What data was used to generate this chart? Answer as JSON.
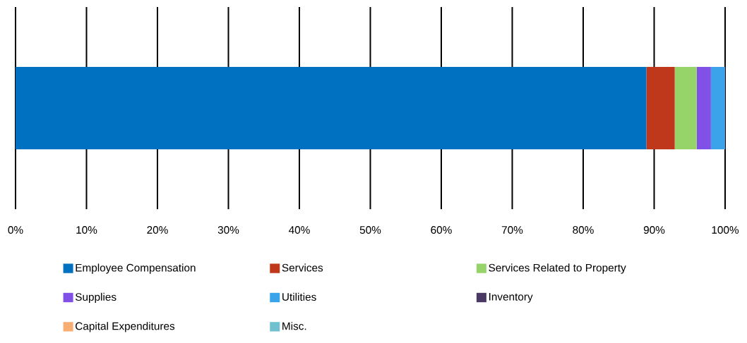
{
  "chart_data": {
    "type": "bar",
    "orientation": "horizontal",
    "stacked": true,
    "categories": [
      null
    ],
    "series": [
      {
        "name": "Employee Compensation",
        "color": "#0070c0",
        "values": [
          88.9
        ]
      },
      {
        "name": "Services",
        "color": "#c0381b",
        "values": [
          4.0
        ]
      },
      {
        "name": "Services Related to Property",
        "color": "#96d46a",
        "values": [
          3.1
        ]
      },
      {
        "name": "Supplies",
        "color": "#8150e6",
        "values": [
          2.0
        ]
      },
      {
        "name": "Utilities",
        "color": "#3aa3ea",
        "values": [
          2.0
        ]
      },
      {
        "name": "Inventory",
        "color": "#4a3a63",
        "values": [
          0
        ]
      },
      {
        "name": "Capital Expenditures",
        "color": "#f8ad73",
        "values": [
          0
        ]
      },
      {
        "name": "Misc.",
        "color": "#70c0d0",
        "values": [
          0
        ]
      }
    ],
    "xlim": [
      0,
      100
    ],
    "xticks": [
      {
        "value": 0,
        "label": "0%"
      },
      {
        "value": 10,
        "label": "10%"
      },
      {
        "value": 20,
        "label": "20%"
      },
      {
        "value": 30,
        "label": "30%"
      },
      {
        "value": 40,
        "label": "40%"
      },
      {
        "value": 50,
        "label": "50%"
      },
      {
        "value": 60,
        "label": "60%"
      },
      {
        "value": 70,
        "label": "70%"
      },
      {
        "value": 80,
        "label": "80%"
      },
      {
        "value": 90,
        "label": "90%"
      },
      {
        "value": 100,
        "label": "100%"
      }
    ],
    "grid": "x",
    "legend": "bottom"
  }
}
